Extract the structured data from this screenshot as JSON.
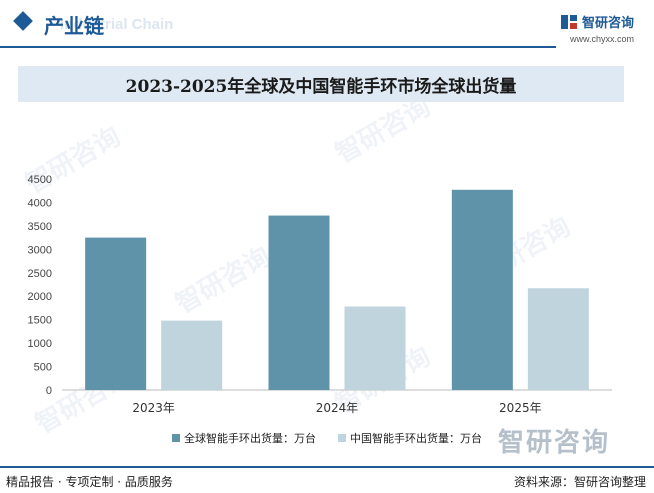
{
  "header": {
    "section_title": "产业链",
    "section_subtitle": "Industrial Chain",
    "brand_name": "智研咨询",
    "brand_url": "www.chyxx.com"
  },
  "chart_data": {
    "type": "bar",
    "title": "2023-2025年全球及中国智能手环市场全球出货量",
    "categories": [
      "2023年",
      "2024年",
      "2025年"
    ],
    "series": [
      {
        "name": "全球智能手环出货量：万台",
        "values": [
          3250,
          3720,
          4270
        ],
        "color": "#5f93a9"
      },
      {
        "name": "中国智能手环出货量：万台",
        "values": [
          1480,
          1780,
          2170
        ],
        "color": "#bfd4dd"
      }
    ],
    "ylim": [
      0,
      4500
    ],
    "yticks": [
      0,
      500,
      1000,
      1500,
      2000,
      2500,
      3000,
      3500,
      4000,
      4500
    ],
    "grid": false,
    "legend": "bottom"
  },
  "watermark": {
    "text": "智研咨询"
  },
  "footer": {
    "left_text": "精品报告 · 专项定制 · 品质服务",
    "right_text": "资料来源：智研咨询整理"
  }
}
